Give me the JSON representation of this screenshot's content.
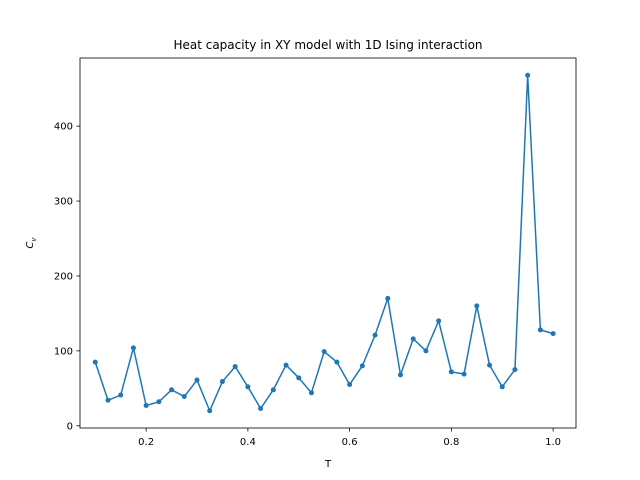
{
  "chart_data": {
    "type": "line",
    "title": "Heat capacity in XY model with 1D Ising interaction",
    "xlabel": "T",
    "ylabel": "C",
    "ylabel_subscript": "v",
    "xlim": [
      0.07,
      1.045
    ],
    "ylim": [
      -3,
      491
    ],
    "x_ticks": [
      0.2,
      0.4,
      0.6,
      0.8,
      1.0
    ],
    "x_tick_labels": [
      "0.2",
      "0.4",
      "0.6",
      "0.8",
      "1.0"
    ],
    "y_ticks": [
      0,
      100,
      200,
      300,
      400
    ],
    "y_tick_labels": [
      "0",
      "100",
      "200",
      "300",
      "400"
    ],
    "grid": false,
    "series": [
      {
        "color": "#1f77b4",
        "marker": "circle",
        "x": [
          0.1,
          0.125,
          0.15,
          0.175,
          0.2,
          0.225,
          0.25,
          0.275,
          0.3,
          0.325,
          0.35,
          0.375,
          0.4,
          0.425,
          0.45,
          0.475,
          0.5,
          0.525,
          0.55,
          0.575,
          0.6,
          0.625,
          0.65,
          0.675,
          0.7,
          0.725,
          0.75,
          0.775,
          0.8,
          0.825,
          0.85,
          0.875,
          0.9,
          0.925,
          0.95,
          0.975,
          1.0
        ],
        "y": [
          85,
          34,
          41,
          104,
          27,
          32,
          48,
          39,
          61,
          20,
          59,
          79,
          52,
          23,
          48,
          81,
          64,
          44,
          99,
          85,
          55,
          80,
          121,
          170,
          68,
          116,
          100,
          140,
          72,
          69,
          160,
          81,
          52,
          75,
          468,
          128,
          123
        ]
      }
    ]
  }
}
